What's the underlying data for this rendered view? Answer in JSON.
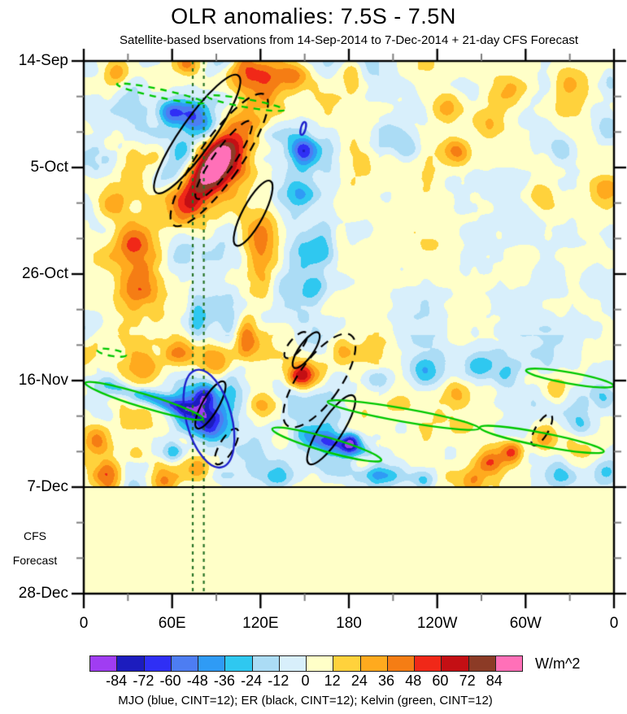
{
  "title": "OLR anomalies: 7.5S - 7.5N",
  "subtitle": "Satellite-based bservations from 14-Sep-2014 to 7-Dec-2014 + 21-day CFS Forecast",
  "chart_data": {
    "type": "heatmap",
    "description": "Hovmoller (time-longitude) diagram of OLR anomalies averaged 7.5S-7.5N, observations 14-Sep-2014 to 7-Dec-2014 plus 21-day CFS forecast; filled anomalies with MJO/ER/Kelvin wave contour overlays",
    "units": "W/m^2",
    "legend": "MJO (blue, CINT=12); ER (black, CINT=12); Kelvin (green, CINT=12)",
    "x_axis": {
      "tick_labels": [
        "0",
        "60E",
        "120E",
        "180",
        "120W",
        "60W",
        "0"
      ],
      "range_deg": [
        0,
        360
      ],
      "major_step_deg": 60,
      "minor_step_deg": 30
    },
    "y_axis": {
      "tick_labels": [
        "14-Sep",
        "5-Oct",
        "26-Oct",
        "16-Nov",
        "7-Dec",
        "28-Dec"
      ],
      "start": "14-Sep-2014",
      "end": "28-Dec-2014",
      "total_days": 105,
      "major_step_days": 21,
      "minor_step_days": 7
    },
    "levels": {
      "min": -84,
      "max": 84,
      "step": 12
    },
    "palette": [
      "#a03df2",
      "#1c1cbe",
      "#2f2ff5",
      "#4d7df2",
      "#2f9bf5",
      "#2fc8f0",
      "#abdcf5",
      "#d8effb",
      "#ffffc8",
      "#ffd23c",
      "#ffaa1e",
      "#f57d14",
      "#f02818",
      "#c40f14",
      "#8c3b26",
      "#ff70b8"
    ],
    "colorbar_labels": [
      "-84",
      "-72",
      "-60",
      "-48",
      "-36",
      "-24",
      "-12",
      "0",
      "12",
      "24",
      "36",
      "48",
      "60",
      "72",
      "84"
    ],
    "forecast": {
      "boundary_tick": "7-Dec",
      "boundary_day": 84,
      "label1": "CFS",
      "label2": "Forecast",
      "uniform_value": 6
    },
    "reference_lines": {
      "vertical_dotted_lon": [
        74,
        81.5
      ],
      "color": "#267326"
    },
    "wave_colors": {
      "MJO": "#1e22cc",
      "ER": "#000000",
      "Kelvin": "#00c800"
    },
    "noise": {
      "seed": 11,
      "octaves": [
        {
          "scale": 60,
          "amp": 14
        },
        {
          "scale": 30,
          "amp": 9
        },
        {
          "scale": 15,
          "amp": 5
        }
      ],
      "region": {
        "lon_split": 200,
        "day_split": 54,
        "factors": [
          1.1,
          1.35,
          0.72,
          1.0
        ]
      }
    },
    "features_format": [
      "lon_deg",
      "day_from_14Sep",
      "amplitude_Wm2",
      "sigma_lon_deg",
      "sigma_days",
      "rotation_deg"
    ],
    "features": [
      [
        90,
        19,
        70,
        10,
        9,
        35
      ],
      [
        95,
        21,
        40,
        14,
        4,
        35
      ],
      [
        71,
        28,
        35,
        11,
        3.2,
        0
      ],
      [
        120,
        4,
        45,
        10,
        2.9,
        0
      ],
      [
        107,
        1.5,
        40,
        8,
        2.4,
        0
      ],
      [
        143,
        2.4,
        35,
        7.7,
        2.2,
        0
      ],
      [
        181,
        1.6,
        25,
        6.6,
        1.9,
        0
      ],
      [
        71,
        0.5,
        40,
        6,
        1.5,
        0
      ],
      [
        58,
        10,
        -45,
        5.5,
        1.6,
        0
      ],
      [
        73,
        11,
        -40,
        7.7,
        2.2,
        0
      ],
      [
        85,
        14,
        -35,
        6.6,
        1.9,
        0
      ],
      [
        69,
        18,
        -40,
        8.8,
        2.6,
        0
      ],
      [
        58,
        22,
        -30,
        7.7,
        2.2,
        0
      ],
      [
        149,
        17.5,
        -55,
        6.6,
        1.9,
        0
      ],
      [
        147,
        26,
        -35,
        7.7,
        2.2,
        0
      ],
      [
        150,
        38,
        -30,
        8.8,
        2.6,
        0
      ],
      [
        157,
        45,
        -30,
        7.7,
        2.2,
        0
      ],
      [
        163,
        34,
        -28,
        6,
        4,
        0
      ],
      [
        120,
        33,
        38,
        9,
        4,
        0
      ],
      [
        120,
        41,
        34,
        8,
        5,
        0
      ],
      [
        110,
        53,
        30,
        5,
        3,
        0
      ],
      [
        33,
        36,
        30,
        8.8,
        2.6,
        0
      ],
      [
        37,
        44,
        30,
        8.8,
        2.6,
        0
      ],
      [
        19,
        28,
        25,
        7.7,
        2.2,
        0
      ],
      [
        35,
        46,
        10,
        12,
        8,
        0
      ],
      [
        76,
        51,
        -32,
        4,
        2.5,
        0
      ],
      [
        245,
        9,
        28,
        8.8,
        2.6,
        0
      ],
      [
        286,
        6,
        30,
        9.9,
        2.9,
        0
      ],
      [
        330,
        4,
        28,
        8.8,
        2.6,
        0
      ],
      [
        253,
        17.5,
        42,
        6.6,
        1.9,
        0
      ],
      [
        275,
        12,
        30,
        7.7,
        2.2,
        0
      ],
      [
        203,
        15,
        -28,
        7.7,
        2.2,
        0
      ],
      [
        220,
        17.5,
        -30,
        6.6,
        1.9,
        0
      ],
      [
        324,
        17.5,
        -25,
        6.6,
        1.9,
        0
      ],
      [
        355,
        13.5,
        -25,
        6.6,
        1.9,
        0
      ],
      [
        308,
        26.5,
        25,
        7.7,
        2.2,
        0
      ],
      [
        355,
        25.5,
        28,
        6.6,
        1.9,
        0
      ],
      [
        63,
        57,
        35,
        8.8,
        2.6,
        0
      ],
      [
        91,
        59,
        38,
        8.8,
        2.6,
        0
      ],
      [
        110,
        55,
        30,
        7.7,
        2.2,
        0
      ],
      [
        44,
        60,
        30,
        6.6,
        1.9,
        0
      ],
      [
        47,
        66.5,
        -50,
        25,
        1.1,
        17
      ],
      [
        77,
        69,
        -50,
        9.9,
        2.9,
        0
      ],
      [
        87,
        72.5,
        -45,
        7.7,
        2.2,
        0
      ],
      [
        82,
        66,
        -55,
        5.5,
        1.6,
        0
      ],
      [
        121,
        68,
        40,
        7.7,
        2.2,
        0
      ],
      [
        137,
        73,
        30,
        6.6,
        1.9,
        0
      ],
      [
        170,
        75.5,
        -45,
        22,
        1.3,
        16
      ],
      [
        181,
        75,
        -55,
        4.4,
        1.3,
        0
      ],
      [
        291,
        77,
        60,
        5.5,
        1.6,
        0
      ],
      [
        275,
        79,
        40,
        6.6,
        1.9,
        0
      ],
      [
        311,
        74.5,
        32,
        6.6,
        1.9,
        0
      ],
      [
        269,
        60,
        -32,
        7.7,
        2.2,
        0
      ],
      [
        286,
        62,
        -30,
        6.6,
        1.9,
        0
      ],
      [
        319,
        65,
        28,
        6.6,
        1.9,
        0
      ],
      [
        336,
        71.5,
        -32,
        6.6,
        1.9,
        0
      ],
      [
        353,
        66.5,
        -28,
        5.5,
        1.6,
        0
      ],
      [
        198,
        63,
        -25,
        7.7,
        2.2,
        0
      ],
      [
        231,
        61,
        -28,
        7.7,
        2.2,
        0
      ],
      [
        253,
        65,
        25,
        6.6,
        1.9,
        0
      ],
      [
        147,
        62,
        55,
        5.5,
        1.6,
        0
      ],
      [
        159,
        61.5,
        40,
        7.7,
        2.2,
        0
      ],
      [
        176,
        57,
        30,
        7.7,
        2.2,
        0
      ],
      [
        16,
        81.5,
        38,
        6.6,
        1.9,
        0
      ],
      [
        55,
        82.5,
        42,
        6.6,
        1.9,
        0
      ],
      [
        36,
        77.5,
        35,
        6.6,
        1.9,
        0
      ],
      [
        77,
        80,
        30,
        5.5,
        1.6,
        0
      ],
      [
        132,
        82.5,
        -30,
        6.6,
        1.9,
        0
      ],
      [
        203,
        81.5,
        -35,
        16.5,
        1.3,
        5
      ],
      [
        231,
        82.5,
        -30,
        5.5,
        1.6,
        0
      ],
      [
        187,
        79,
        28,
        5.5,
        1.6,
        0
      ],
      [
        324,
        81.5,
        -28,
        7.7,
        2.2,
        0
      ],
      [
        355,
        80.5,
        -22,
        5.5,
        1.6,
        0
      ],
      [
        264,
        83,
        25,
        5.5,
        1.6,
        0
      ],
      [
        11,
        74.5,
        35,
        7.7,
        2.2,
        0
      ],
      [
        60,
        77,
        -40,
        4.4,
        1.3,
        0
      ],
      [
        22,
        2,
        28,
        6,
        2,
        0
      ],
      [
        357,
        4,
        -22,
        4,
        2,
        0
      ]
    ],
    "overlays": [
      {
        "wave": "ER",
        "style": "solid",
        "lon": 77,
        "day": 14.4,
        "rx": 11,
        "ry": 14.1,
        "rot": 35
      },
      {
        "wave": "ER",
        "style": "dashed",
        "lon": 92,
        "day": 19.5,
        "rx": 14.3,
        "ry": 15.7,
        "rot": 35
      },
      {
        "wave": "ER",
        "style": "dashed",
        "lon": 95,
        "day": 19.5,
        "rx": 7.1,
        "ry": 9.3,
        "rot": 35
      },
      {
        "wave": "ER",
        "style": "solid",
        "lon": 115,
        "day": 30,
        "rx": 7.1,
        "ry": 7.2,
        "rot": 28
      },
      {
        "wave": "ER",
        "style": "dashed",
        "lon": 160,
        "day": 63,
        "rx": 14.3,
        "ry": 10.9,
        "rot": 35
      },
      {
        "wave": "ER",
        "style": "solid",
        "lon": 151,
        "day": 57,
        "rx": 4.9,
        "ry": 4.2,
        "rot": 35
      },
      {
        "wave": "ER",
        "style": "dashed",
        "lon": 144,
        "day": 56,
        "rx": 4.4,
        "ry": 3.2,
        "rot": 40
      },
      {
        "wave": "ER",
        "style": "solid",
        "lon": 168,
        "day": 72.7,
        "rx": 7.7,
        "ry": 8,
        "rot": 33
      },
      {
        "wave": "ER",
        "style": "dashed",
        "lon": 97,
        "day": 76,
        "rx": 4.9,
        "ry": 4,
        "rot": 30
      },
      {
        "wave": "ER",
        "style": "dashed",
        "lon": 311,
        "day": 72.7,
        "rx": 4.4,
        "ry": 3.5,
        "rot": 30
      },
      {
        "wave": "ER",
        "style": "solid",
        "lon": 86,
        "day": 67.8,
        "rx": 5.5,
        "ry": 5.3,
        "rot": 30
      },
      {
        "wave": "MJO",
        "style": "solid",
        "lon": 85,
        "day": 70.5,
        "rx": 15.4,
        "ry": 9.9,
        "rot": -15
      },
      {
        "wave": "MJO",
        "style": "solid",
        "lon": 149,
        "day": 13.3,
        "rx": 1.6,
        "ry": 1.3,
        "rot": 15
      },
      {
        "wave": "Kelvin",
        "style": "solid",
        "lon": 41,
        "day": 67,
        "rx": 41.8,
        "ry": 1.3,
        "rot": 17
      },
      {
        "wave": "Kelvin",
        "style": "solid",
        "lon": 165,
        "day": 75.6,
        "rx": 38.5,
        "ry": 1.4,
        "rot": 16
      },
      {
        "wave": "Kelvin",
        "style": "solid",
        "lon": 217,
        "day": 69.8,
        "rx": 52.2,
        "ry": 1.3,
        "rot": 10
      },
      {
        "wave": "Kelvin",
        "style": "solid",
        "lon": 311,
        "day": 74.6,
        "rx": 42.9,
        "ry": 1.3,
        "rot": 11
      },
      {
        "wave": "Kelvin",
        "style": "solid",
        "lon": 330,
        "day": 62.5,
        "rx": 30.2,
        "ry": 1.1,
        "rot": 10
      },
      {
        "wave": "Kelvin",
        "style": "dashed",
        "lon": 52,
        "day": 6.4,
        "rx": 30.2,
        "ry": 0.8,
        "rot": 12
      },
      {
        "wave": "Kelvin",
        "style": "dashed",
        "lon": 110,
        "day": 8.3,
        "rx": 26.4,
        "ry": 0.8,
        "rot": 10
      },
      {
        "wave": "Kelvin",
        "style": "dashed",
        "lon": 19,
        "day": 57.5,
        "rx": 9.9,
        "ry": 0.64,
        "rot": 10
      }
    ]
  }
}
